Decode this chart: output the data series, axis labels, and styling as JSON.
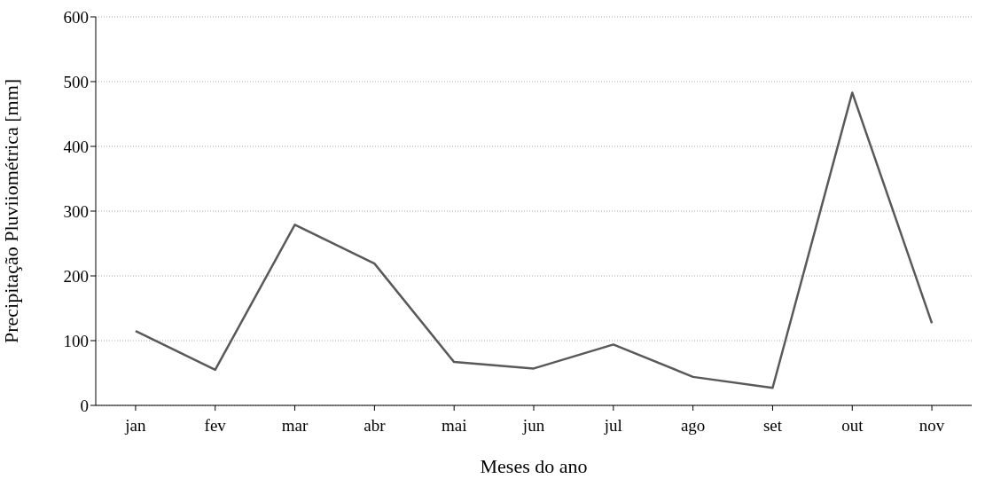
{
  "chart_data": {
    "type": "line",
    "xlabel": "Meses do ano",
    "ylabel": "Precipitação Pluviiométrica [mm]",
    "categories": [
      "jan",
      "fev",
      "mar",
      "abr",
      "mai",
      "jun",
      "jul",
      "ago",
      "set",
      "out",
      "nov"
    ],
    "series": [
      {
        "color": "#595959",
        "values": [
          115,
          55,
          279,
          219,
          67,
          57,
          94,
          44,
          27,
          483,
          127
        ]
      }
    ],
    "ylim": [
      0,
      600
    ],
    "yticks": [
      0,
      100,
      200,
      300,
      400,
      500,
      600
    ],
    "grid": "y",
    "marker": "none",
    "line_style": "solid"
  }
}
